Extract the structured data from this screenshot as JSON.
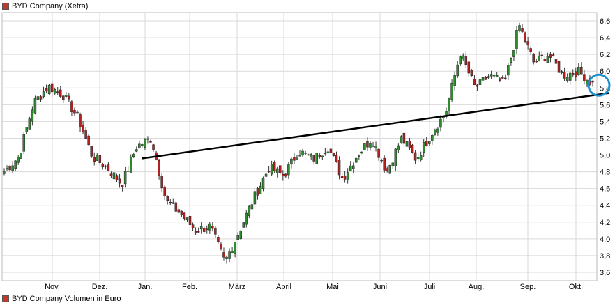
{
  "legend": {
    "label": "BYD Company (Xetra)",
    "color": "#c0392b"
  },
  "legend_volume": {
    "label": "BYD Company Volumen in Euro"
  },
  "colors": {
    "up": "#2e8b2e",
    "down": "#b22222",
    "trend": "#000000",
    "circle": "#1e90d0",
    "grid": "#d9d9d9"
  },
  "chart_data": {
    "type": "candlestick",
    "title": "BYD Company (Xetra)",
    "ylim": [
      3.5,
      6.7
    ],
    "y_ticks": [
      "6,6",
      "6,4",
      "6,2",
      "6,0",
      "5,8",
      "5,6",
      "5,4",
      "5,2",
      "5,0",
      "4,8",
      "4,6",
      "4,4",
      "4,2",
      "4,0",
      "3,8",
      "3,6"
    ],
    "x_labels": [
      "Nov.",
      "Dez.",
      "Jan.",
      "Feb.",
      "März",
      "April",
      "Mai",
      "Juni",
      "Juli",
      "Aug.",
      "Sep.",
      "Okt."
    ],
    "grid": true,
    "trend_line": {
      "from": {
        "month": "Jan.",
        "value": 4.96
      },
      "to": {
        "month": "Okt.",
        "value": 5.74
      }
    },
    "highlight_circle": {
      "month": "Okt.",
      "value": 5.85
    },
    "anchors": [
      [
        4.8,
        4.78
      ],
      [
        4.98,
        4.98
      ],
      [
        5.62,
        5.62
      ],
      [
        5.82,
        5.82
      ],
      [
        5.72,
        5.72
      ],
      [
        5.45,
        5.45
      ],
      [
        4.98,
        4.98
      ],
      [
        4.85,
        4.85
      ],
      [
        4.65,
        4.65
      ],
      [
        5.1,
        5.1
      ],
      [
        5.2,
        5.2
      ],
      [
        4.45,
        4.45
      ],
      [
        4.3,
        4.3
      ],
      [
        4.1,
        4.1
      ],
      [
        4.15,
        4.15
      ],
      [
        3.72,
        3.72
      ],
      [
        4.1,
        4.1
      ],
      [
        4.5,
        4.5
      ],
      [
        4.85,
        4.85
      ],
      [
        4.75,
        4.75
      ],
      [
        5.05,
        5.05
      ],
      [
        4.95,
        4.95
      ],
      [
        5.1,
        5.1
      ],
      [
        4.72,
        4.72
      ],
      [
        5.0,
        5.0
      ],
      [
        5.2,
        5.2
      ],
      [
        4.8,
        4.8
      ],
      [
        5.2,
        5.2
      ],
      [
        4.95,
        4.95
      ],
      [
        5.25,
        5.25
      ],
      [
        5.5,
        5.5
      ],
      [
        6.22,
        6.22
      ],
      [
        5.8,
        5.8
      ],
      [
        5.95,
        5.95
      ],
      [
        5.85,
        5.85
      ],
      [
        6.55,
        6.55
      ],
      [
        6.1,
        6.1
      ],
      [
        6.2,
        6.2
      ],
      [
        5.95,
        5.95
      ],
      [
        6.0,
        6.0
      ],
      [
        5.85,
        5.85
      ]
    ]
  }
}
